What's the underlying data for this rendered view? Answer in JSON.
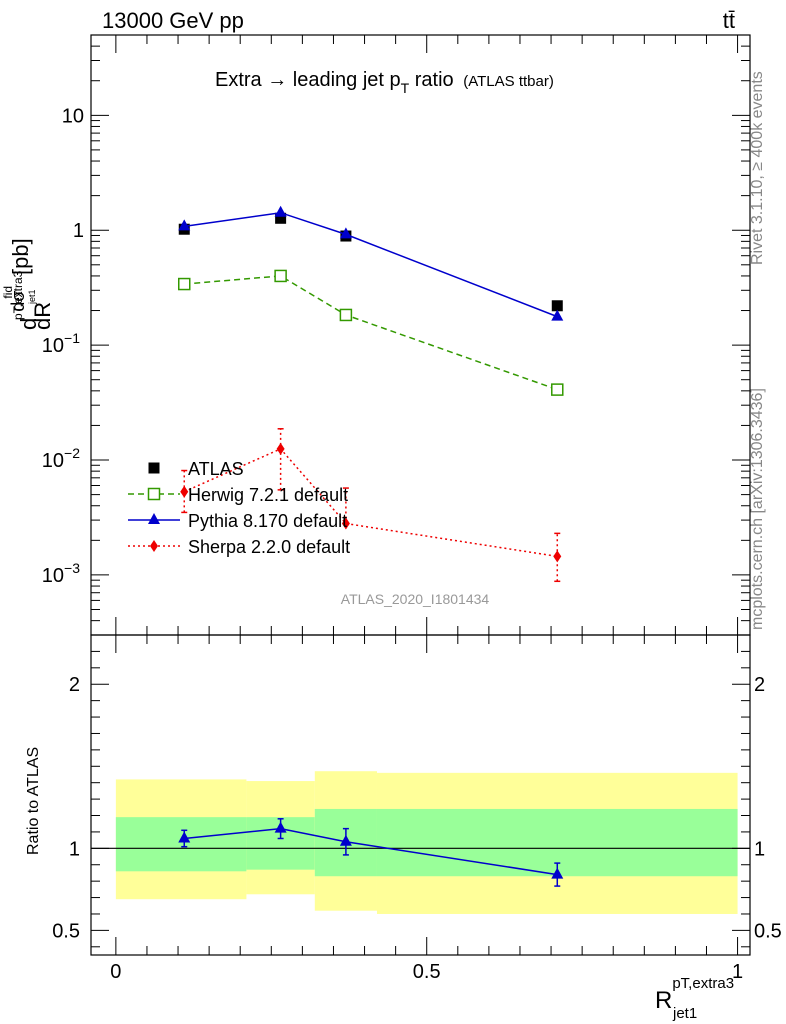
{
  "header": {
    "left": "13000 GeV pp",
    "right": "tt̄"
  },
  "side_labels": {
    "rivet": "Rivet 3.1.10, ≥ 400k events",
    "mcplots": "mcplots.cern.ch [arXiv:1306.3436]"
  },
  "chart_data": [
    {
      "type": "scatter",
      "title_main": "Extra → leading jet p",
      "title_sub": "T",
      "title_tail": " ratio",
      "title_small": "(ATLAS ttbar)",
      "analysis": "ATLAS_2020_I1801434",
      "ylabel": "dσ^fid / dR [pb]",
      "ylabel_parts": {
        "d": "d",
        "sigma": "dσ",
        "fid": "fid",
        "sub": "pT,extra3",
        "sub2": "jet1",
        "dR": "dR",
        "unit": " [pb]"
      },
      "yscale": "log",
      "ylim": [
        0.0003,
        50
      ],
      "xlim": [
        -0.04,
        1.02
      ],
      "yticks": [
        {
          "value": 10,
          "label": "10"
        },
        {
          "value": 1,
          "label": "1"
        },
        {
          "value": 0.1,
          "label": "10",
          "sup": "−1"
        },
        {
          "value": 0.01,
          "label": "10",
          "sup": "−2"
        },
        {
          "value": 0.001,
          "label": "10",
          "sup": "−3"
        }
      ],
      "series": [
        {
          "name": "ATLAS",
          "color": "#000000",
          "marker": "square-filled",
          "line": "none",
          "x": [
            0.11,
            0.265,
            0.37,
            0.71
          ],
          "y": [
            1.02,
            1.27,
            0.89,
            0.22
          ]
        },
        {
          "name": "Herwig 7.2.1 default",
          "color": "#339900",
          "marker": "square-open",
          "line": "dashed",
          "x": [
            0.11,
            0.265,
            0.37,
            0.71
          ],
          "y": [
            0.34,
            0.4,
            0.183,
            0.041
          ]
        },
        {
          "name": "Pythia 8.170 default",
          "color": "#0000cc",
          "marker": "triangle",
          "line": "solid",
          "x": [
            0.11,
            0.265,
            0.37,
            0.71
          ],
          "y": [
            1.08,
            1.42,
            0.92,
            0.177
          ]
        },
        {
          "name": "Sherpa 2.2.0 default",
          "color": "#ee0000",
          "marker": "diamond",
          "line": "dotted",
          "x": [
            0.11,
            0.265,
            0.37,
            0.71
          ],
          "y": [
            0.0053,
            0.0125,
            0.0028,
            0.00145
          ],
          "yerr_low": [
            0.0035,
            0.0055,
            0.0028,
            0.00088
          ],
          "yerr_high": [
            0.0081,
            0.0187,
            0.0057,
            0.0023
          ]
        }
      ],
      "legend_position": "lower-left"
    },
    {
      "type": "line",
      "ylabel": "Ratio to ATLAS",
      "ylim": [
        0.35,
        2.3
      ],
      "xlim": [
        -0.04,
        1.02
      ],
      "yticks": [
        0.5,
        1,
        2
      ],
      "xticks": [
        0,
        0.5,
        1
      ],
      "xtick_labels": [
        "0",
        "0.5",
        "1"
      ],
      "xlabel_parts": {
        "base": "R",
        "sup": "pT,extra3",
        "sub": "jet1"
      },
      "bins": [
        0,
        0.21,
        0.32,
        0.42,
        1.0
      ],
      "band_yellow": {
        "low": [
          0.69,
          0.72,
          0.62,
          0.6
        ],
        "high": [
          1.42,
          1.41,
          1.47,
          1.46
        ]
      },
      "band_green": {
        "low": [
          0.86,
          0.87,
          0.83,
          0.83
        ],
        "high": [
          1.19,
          1.19,
          1.24,
          1.24
        ]
      },
      "series": [
        {
          "name": "Pythia 8.170 default",
          "color": "#0000cc",
          "x": [
            0.11,
            0.265,
            0.37,
            0.71
          ],
          "y": [
            1.06,
            1.12,
            1.04,
            0.84
          ],
          "yerr": [
            0.05,
            0.06,
            0.08,
            0.07
          ]
        }
      ]
    }
  ]
}
